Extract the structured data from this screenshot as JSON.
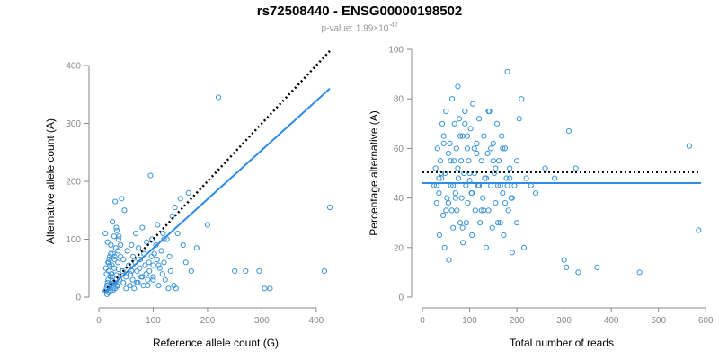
{
  "title": "rs72508440 - ENSG00000198502",
  "subtitle": {
    "prefix": "p-value: 1.99×10",
    "exponent": "-42"
  },
  "colors": {
    "points": "#3a93d8",
    "fit": "#2e8be6",
    "reference": "#000000",
    "axis": "#888888"
  },
  "chart_data": [
    {
      "type": "scatter",
      "xlabel": "Reference allele count (G)",
      "ylabel": "Alternative allele count (A)",
      "xlim": [
        0,
        430
      ],
      "ylim": [
        0,
        400
      ],
      "xticks": [
        "0",
        "100",
        "200",
        "300",
        "400"
      ],
      "yticks": [
        "0",
        "100",
        "200",
        "300",
        "400"
      ],
      "reference_line": {
        "x": [
          10,
          425
        ],
        "y": [
          10,
          425
        ],
        "style": "dotted"
      },
      "fit_line": {
        "x": [
          10,
          425
        ],
        "y": [
          8,
          360
        ]
      },
      "x": [
        12,
        14,
        15,
        16,
        17,
        18,
        18,
        19,
        20,
        20,
        21,
        22,
        22,
        23,
        24,
        25,
        25,
        26,
        27,
        28,
        28,
        29,
        30,
        30,
        31,
        32,
        33,
        34,
        35,
        36,
        36,
        38,
        40,
        42,
        44,
        45,
        47,
        50,
        52,
        55,
        57,
        58,
        60,
        62,
        63,
        65,
        67,
        68,
        70,
        72,
        73,
        75,
        76,
        78,
        80,
        82,
        83,
        85,
        87,
        88,
        90,
        92,
        93,
        95,
        97,
        98,
        100,
        100,
        102,
        105,
        107,
        108,
        110,
        112,
        115,
        117,
        118,
        120,
        122,
        125,
        128,
        130,
        132,
        135,
        138,
        140,
        142,
        145,
        150,
        155,
        160,
        165,
        170,
        180,
        200,
        220,
        250,
        270,
        295,
        305,
        315,
        415,
        425,
        15,
        18,
        22,
        26,
        30,
        14,
        20,
        25,
        35,
        45,
        12,
        16,
        22,
        28,
        33,
        40,
        50,
        60,
        70,
        80,
        90,
        100,
        110,
        120,
        13,
        17,
        19,
        24,
        29,
        32,
        37
      ],
      "y": [
        10,
        15,
        20,
        25,
        30,
        45,
        60,
        12,
        18,
        70,
        35,
        22,
        90,
        40,
        55,
        130,
        28,
        75,
        16,
        50,
        105,
        65,
        24,
        165,
        85,
        38,
        115,
        19,
        60,
        48,
        100,
        30,
        70,
        170,
        45,
        25,
        150,
        35,
        80,
        55,
        20,
        40,
        90,
        30,
        70,
        15,
        60,
        110,
        45,
        25,
        85,
        50,
        65,
        35,
        120,
        20,
        75,
        55,
        40,
        95,
        30,
        60,
        45,
        210,
        70,
        100,
        55,
        35,
        75,
        90,
        65,
        125,
        20,
        50,
        80,
        40,
        110,
        60,
        30,
        100,
        15,
        70,
        45,
        140,
        20,
        155,
        15,
        110,
        170,
        90,
        60,
        180,
        45,
        85,
        125,
        345,
        45,
        45,
        45,
        15,
        15,
        45,
        155,
        5,
        8,
        10,
        12,
        15,
        40,
        55,
        35,
        80,
        65,
        110,
        95,
        75,
        25,
        20,
        90,
        15,
        45,
        25,
        35,
        20,
        30,
        55,
        100,
        50,
        60,
        65,
        40,
        70,
        120,
        105
      ],
      "title": ""
    },
    {
      "type": "scatter",
      "xlabel": "Total number of reads",
      "ylabel": "Percentage alternative (A)",
      "xlim": [
        0,
        590
      ],
      "ylim": [
        0,
        100
      ],
      "xticks": [
        "0",
        "100",
        "200",
        "300",
        "400",
        "500",
        "600"
      ],
      "yticks": [
        "0",
        "20",
        "40",
        "60",
        "80",
        "100"
      ],
      "reference_line": {
        "x": [
          0,
          590
        ],
        "y": [
          50.5,
          50.5
        ],
        "style": "dotted"
      },
      "fit_line": {
        "x": [
          0,
          590
        ],
        "y": [
          46,
          46
        ]
      },
      "x": [
        25,
        28,
        30,
        32,
        35,
        36,
        38,
        40,
        42,
        44,
        45,
        47,
        48,
        50,
        52,
        55,
        56,
        58,
        60,
        62,
        63,
        65,
        67,
        68,
        70,
        72,
        73,
        75,
        76,
        78,
        80,
        82,
        83,
        85,
        86,
        88,
        90,
        92,
        93,
        95,
        96,
        98,
        100,
        102,
        104,
        105,
        107,
        110,
        112,
        115,
        118,
        120,
        122,
        125,
        128,
        130,
        132,
        135,
        138,
        140,
        142,
        145,
        148,
        150,
        152,
        155,
        158,
        160,
        162,
        165,
        168,
        170,
        172,
        175,
        178,
        180,
        182,
        185,
        188,
        190,
        195,
        200,
        205,
        210,
        215,
        220,
        230,
        240,
        260,
        280,
        300,
        305,
        310,
        325,
        330,
        370,
        460,
        565,
        585,
        30,
        40,
        50,
        60,
        70,
        80,
        90,
        100,
        110,
        120,
        130,
        140,
        150,
        160,
        170,
        180,
        190,
        200,
        35,
        45,
        55,
        65,
        75,
        85,
        95,
        105,
        115,
        125,
        135,
        145,
        155,
        165,
        175,
        185
      ],
      "y": [
        45,
        52,
        38,
        60,
        42,
        25,
        55,
        48,
        70,
        33,
        65,
        20,
        50,
        75,
        40,
        58,
        15,
        62,
        45,
        35,
        80,
        28,
        55,
        70,
        42,
        60,
        35,
        85,
        48,
        72,
        30,
        55,
        40,
        65,
        22,
        50,
        75,
        45,
        30,
        60,
        38,
        55,
        47,
        68,
        42,
        25,
        78,
        50,
        35,
        62,
        45,
        72,
        30,
        55,
        40,
        65,
        48,
        20,
        58,
        35,
        75,
        45,
        28,
        62,
        50,
        38,
        70,
        45,
        55,
        30,
        65,
        42,
        25,
        60,
        48,
        91,
        35,
        52,
        40,
        18,
        45,
        30,
        72,
        80,
        20,
        48,
        45,
        42,
        52,
        48,
        15,
        12,
        67,
        52,
        10,
        12,
        10,
        61,
        27,
        45,
        50,
        35,
        55,
        40,
        65,
        70,
        50,
        60,
        45,
        35,
        75,
        55,
        30,
        60,
        45,
        40,
        55,
        48,
        62,
        38,
        45,
        52,
        28,
        65,
        42,
        58,
        35,
        48,
        60,
        52,
        45,
        38,
        48
      ],
      "title": ""
    }
  ]
}
